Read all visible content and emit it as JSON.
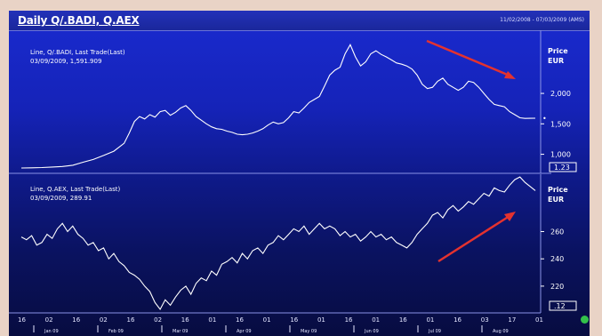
{
  "header": {
    "title": "Daily Q/.BADI, Q.AEX",
    "date_range": "11/02/2008 - 07/03/2009 (AMS)"
  },
  "panels": {
    "top": {
      "legend_line1": "Line, Q/.BADI, Last Trade(Last)",
      "legend_line2": "03/09/2009, 1,591.909",
      "axis_title": "Price",
      "axis_unit": "EUR",
      "tick_labels": [
        "2,000",
        "1,500",
        "1,000"
      ],
      "last_value_marker": "•",
      "scale_box": "1.23"
    },
    "bottom": {
      "legend_line1": "Line, Q.AEX, Last Trade(Last)",
      "legend_line2": "03/09/2009, 289.91",
      "axis_title": "Price",
      "axis_unit": "EUR",
      "tick_labels": [
        "260",
        "240",
        "220"
      ],
      "scale_box": ".12"
    }
  },
  "x_axis": {
    "day_ticks": [
      "16",
      "02",
      "16",
      "02",
      "16",
      "02",
      "16",
      "01",
      "16",
      "01",
      "16",
      "01",
      "16",
      "01",
      "16",
      "01",
      "16",
      "03",
      "17",
      "01"
    ],
    "months": [
      "Jan 09",
      "Feb 09",
      "Mar 09",
      "Apr 09",
      "May 09",
      "Jun 09",
      "Jul 09",
      "Aug 09"
    ]
  },
  "chart_data": [
    {
      "type": "line",
      "series": [
        {
          "name": "Q/.BADI",
          "x": [
            0,
            2,
            4,
            6,
            8,
            10,
            12,
            14,
            16,
            18,
            20,
            21,
            22,
            23,
            24,
            25,
            26,
            27,
            28,
            29,
            30,
            31,
            32,
            33,
            34,
            35,
            36,
            37,
            38,
            39,
            40,
            41,
            42,
            43,
            44,
            45,
            46,
            47,
            48,
            49,
            50,
            51,
            52,
            53,
            54,
            55,
            56,
            57,
            58,
            59,
            60,
            61,
            62,
            63,
            64,
            65,
            66,
            67,
            68,
            69,
            70,
            71,
            72,
            73,
            74,
            75,
            76,
            77,
            78,
            79,
            80,
            81,
            82,
            83,
            84,
            85,
            86,
            87,
            88,
            89,
            90,
            91,
            92,
            93,
            94,
            95,
            96,
            97,
            98,
            99,
            100
          ],
          "values": [
            775,
            778,
            782,
            790,
            800,
            820,
            870,
            915,
            980,
            1050,
            1180,
            1350,
            1540,
            1620,
            1580,
            1650,
            1610,
            1700,
            1720,
            1640,
            1690,
            1760,
            1800,
            1720,
            1620,
            1560,
            1500,
            1450,
            1420,
            1410,
            1380,
            1360,
            1330,
            1320,
            1330,
            1350,
            1380,
            1420,
            1480,
            1530,
            1500,
            1520,
            1600,
            1700,
            1680,
            1760,
            1850,
            1900,
            1950,
            2120,
            2300,
            2380,
            2430,
            2650,
            2800,
            2600,
            2450,
            2520,
            2650,
            2700,
            2640,
            2600,
            2550,
            2500,
            2480,
            2450,
            2400,
            2300,
            2150,
            2080,
            2100,
            2200,
            2250,
            2150,
            2100,
            2050,
            2100,
            2200,
            2180,
            2100,
            2000,
            1900,
            1820,
            1800,
            1780,
            1700,
            1650,
            1600,
            1590,
            1591,
            1592
          ]
        }
      ],
      "ylim": [
        760,
        2950
      ],
      "y_ticks": [
        1000,
        1500,
        2000
      ]
    },
    {
      "type": "line",
      "series": [
        {
          "name": "Q.AEX",
          "x": [
            0,
            1,
            2,
            3,
            4,
            5,
            6,
            7,
            8,
            9,
            10,
            11,
            12,
            13,
            14,
            15,
            16,
            17,
            18,
            19,
            20,
            21,
            22,
            23,
            24,
            25,
            26,
            27,
            28,
            29,
            30,
            31,
            32,
            33,
            34,
            35,
            36,
            37,
            38,
            39,
            40,
            41,
            42,
            43,
            44,
            45,
            46,
            47,
            48,
            49,
            50,
            51,
            52,
            53,
            54,
            55,
            56,
            57,
            58,
            59,
            60,
            61,
            62,
            63,
            64,
            65,
            66,
            67,
            68,
            69,
            70,
            71,
            72,
            73,
            74,
            75,
            76,
            77,
            78,
            79,
            80,
            81,
            82,
            83,
            84,
            85,
            86,
            87,
            88,
            89,
            90,
            91,
            92,
            93,
            94,
            95,
            96,
            97,
            98,
            99,
            100
          ],
          "values": [
            256,
            254,
            257,
            250,
            252,
            258,
            255,
            262,
            266,
            260,
            264,
            258,
            255,
            250,
            252,
            246,
            248,
            240,
            244,
            238,
            235,
            230,
            228,
            225,
            220,
            216,
            208,
            203,
            210,
            206,
            212,
            217,
            220,
            214,
            222,
            226,
            224,
            231,
            228,
            236,
            238,
            241,
            237,
            244,
            240,
            246,
            248,
            244,
            250,
            252,
            257,
            254,
            258,
            262,
            260,
            264,
            258,
            262,
            266,
            262,
            264,
            262,
            257,
            260,
            256,
            258,
            253,
            256,
            260,
            256,
            258,
            254,
            256,
            252,
            250,
            248,
            252,
            258,
            262,
            266,
            272,
            274,
            270,
            276,
            279,
            275,
            278,
            282,
            280,
            284,
            288,
            286,
            292,
            290,
            289,
            294,
            298,
            300,
            296,
            293,
            290
          ]
        }
      ],
      "ylim": [
        203,
        302
      ],
      "y_ticks": [
        220,
        240,
        260
      ]
    }
  ]
}
